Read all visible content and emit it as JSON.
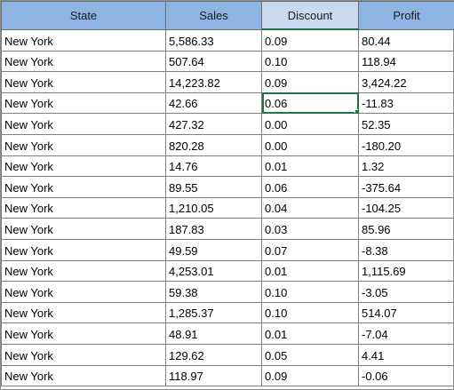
{
  "headers": [
    "State",
    "Sales",
    "Discount",
    "Profit"
  ],
  "rows": [
    [
      "New York",
      "5,586.33",
      "0.09",
      "80.44"
    ],
    [
      "New York",
      "507.64",
      "0.10",
      "118.94"
    ],
    [
      "New York",
      "14,223.82",
      "0.09",
      "3,424.22"
    ],
    [
      "New York",
      "42.66",
      "0.06",
      "-11.83"
    ],
    [
      "New York",
      "427.32",
      "0.00",
      "52.35"
    ],
    [
      "New York",
      "820.28",
      "0.00",
      "-180.20"
    ],
    [
      "New York",
      "14.76",
      "0.01",
      "1.32"
    ],
    [
      "New York",
      "89.55",
      "0.06",
      "-375.64"
    ],
    [
      "New York",
      "1,210.05",
      "0.04",
      "-104.25"
    ],
    [
      "New York",
      "187.83",
      "0.03",
      "85.96"
    ],
    [
      "New York",
      "49.59",
      "0.07",
      "-8.38"
    ],
    [
      "New York",
      "4,253.01",
      "0.01",
      "1,115.69"
    ],
    [
      "New York",
      "59.38",
      "0.10",
      "-3.05"
    ],
    [
      "New York",
      "1,285.37",
      "0.10",
      "514.07"
    ],
    [
      "New York",
      "48.91",
      "0.01",
      "-7.04"
    ],
    [
      "New York",
      "129.62",
      "0.05",
      "4.41"
    ],
    [
      "New York",
      "118.97",
      "0.09",
      "-0.06"
    ]
  ],
  "selection": {
    "row": 3,
    "col": 2
  },
  "colors": {
    "header_bg": "#8db4e2",
    "selection_border": "#217346"
  }
}
